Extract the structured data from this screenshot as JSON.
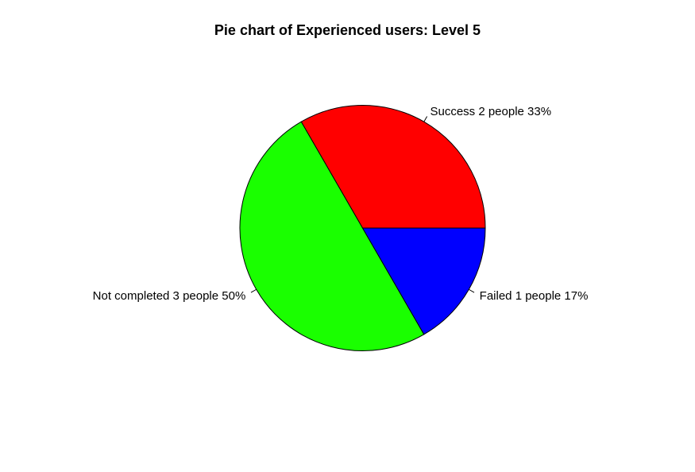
{
  "chart_data": {
    "type": "pie",
    "title": "Pie chart of Experienced users: Level 5",
    "slices": [
      {
        "label": "Success 2 people 33%",
        "value": 2,
        "color": "#ff0000"
      },
      {
        "label": "Not completed 3 people 50%",
        "value": 3,
        "color": "#1aff00"
      },
      {
        "label": "Failed 1 people 17%",
        "value": 1,
        "color": "#0000ff"
      }
    ],
    "direction": "counterclockwise",
    "start": "3 o'clock"
  }
}
